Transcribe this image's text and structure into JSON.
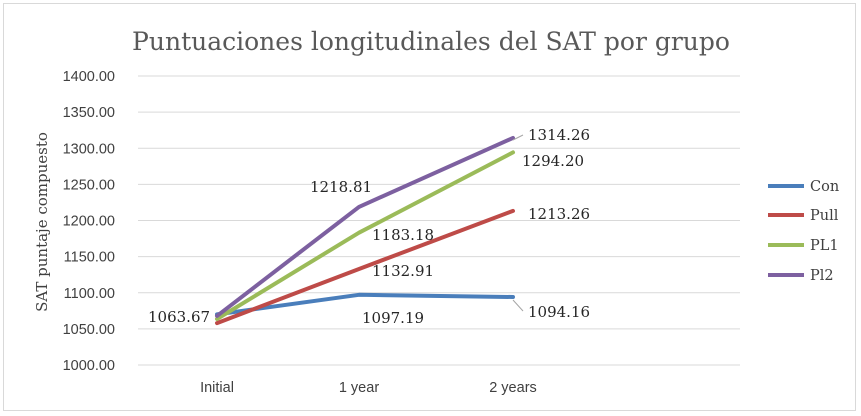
{
  "chart_data": {
    "type": "line",
    "title": "Puntuaciones longitudinales del SAT por grupo",
    "xlabel": "",
    "ylabel": "SAT puntaje compuesto",
    "categories": [
      "Initial",
      "1 year",
      "2 years"
    ],
    "ylim": [
      1000,
      1400
    ],
    "yticks": [
      "1000.00",
      "1050.00",
      "1100.00",
      "1150.00",
      "1200.00",
      "1250.00",
      "1300.00",
      "1350.00",
      "1400.00"
    ],
    "grid": true,
    "legend": "right",
    "series": [
      {
        "name": "Con",
        "color": "#4a7ebb",
        "values": [
          1070,
          1097.19,
          1094.16
        ]
      },
      {
        "name": "Pull",
        "color": "#be4b48",
        "values": [
          1058,
          1132.91,
          1213.26
        ]
      },
      {
        "name": "PL1",
        "color": "#9bbb59",
        "values": [
          1063.67,
          1183.18,
          1294.2
        ]
      },
      {
        "name": "Pl2",
        "color": "#7d60a0",
        "values": [
          1068,
          1218.81,
          1314.26
        ]
      }
    ],
    "data_labels": [
      "1063.67",
      "1218.81",
      "1183.18",
      "1132.91",
      "1097.19",
      "1314.26",
      "1294.20",
      "1213.26",
      "1094.16"
    ]
  }
}
